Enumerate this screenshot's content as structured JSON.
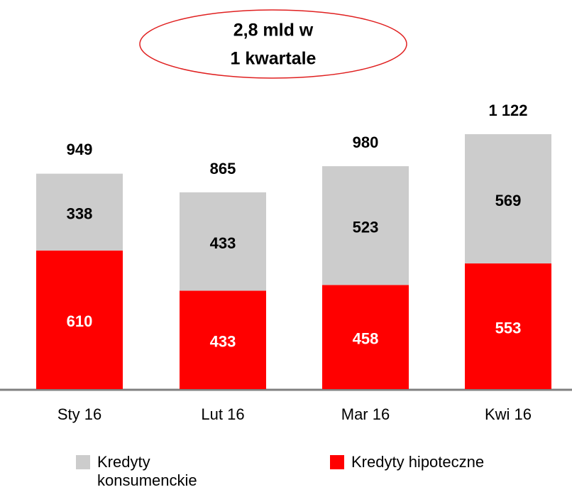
{
  "chart_data": {
    "type": "stacked_bar",
    "annotation": [
      "2,8 mld w",
      "1 kwartale"
    ],
    "categories": [
      "Sty 16",
      "Lut 16",
      "Mar 16",
      "Kwi 16"
    ],
    "series": [
      {
        "name": "Kredyty konsumenckie",
        "color": "#cccccc",
        "values": [
          338,
          433,
          523,
          569
        ]
      },
      {
        "name": "Kredyty hipoteczne",
        "color": "#ff0000",
        "values": [
          610,
          433,
          458,
          553
        ]
      }
    ],
    "totals": {
      "values": [
        949,
        865,
        980,
        1122
      ],
      "value_labels": [
        "949",
        "865",
        "980",
        "1 122"
      ]
    }
  }
}
